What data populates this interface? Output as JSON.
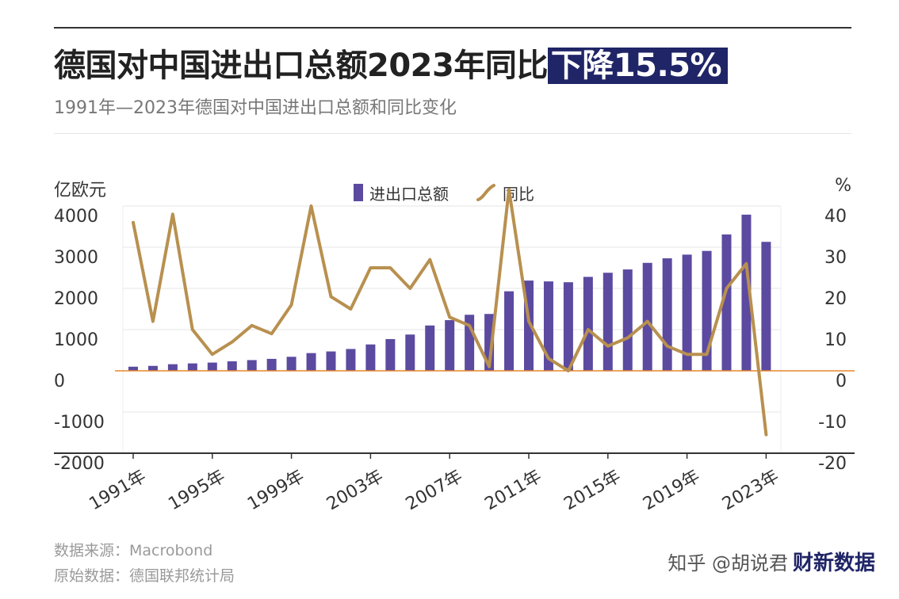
{
  "title": {
    "main": "德国对中国进出口总额2023年同比",
    "highlight": "下降15.5%"
  },
  "subtitle": "1991年—2023年德国对中国进出口总额和同比变化",
  "footer": {
    "source": "数据来源：Macrobond",
    "origin": "原始数据：德国联邦统计局",
    "brand_logo": "财新数据",
    "brand_text": "知乎 @胡说君"
  },
  "colors": {
    "bar": "#5b4aa0",
    "line": "#b8904f",
    "zero_line": "#e8862c",
    "title_highlight_bg": "#1f2566"
  },
  "chart_data": {
    "type": "bar+line",
    "left_unit": "亿欧元",
    "right_unit": "%",
    "x": [
      1991,
      1992,
      1993,
      1994,
      1995,
      1996,
      1997,
      1998,
      1999,
      2000,
      2001,
      2002,
      2003,
      2004,
      2005,
      2006,
      2007,
      2008,
      2009,
      2010,
      2011,
      2012,
      2013,
      2014,
      2015,
      2016,
      2017,
      2018,
      2019,
      2020,
      2021,
      2022,
      2023
    ],
    "x_tick_labels": [
      "1991年",
      "1995年",
      "1999年",
      "2003年",
      "2007年",
      "2011年",
      "2015年",
      "2019年",
      "2023年"
    ],
    "x_tick_years": [
      1991,
      1995,
      1999,
      2003,
      2007,
      2011,
      2015,
      2019,
      2023
    ],
    "y_left_ticks": [
      4000,
      3000,
      2000,
      1000,
      0,
      -1000,
      -2000
    ],
    "y_right_ticks": [
      40,
      30,
      20,
      10,
      0,
      -10,
      -20
    ],
    "ylim_left": [
      -2000,
      4000
    ],
    "ylim_right": [
      -20,
      40
    ],
    "grid": true,
    "legend": "top-center",
    "series": [
      {
        "name": "进出口总额",
        "type": "bar",
        "axis": "left",
        "values": [
          100,
          120,
          160,
          180,
          200,
          230,
          260,
          290,
          340,
          430,
          470,
          530,
          640,
          770,
          880,
          1100,
          1230,
          1360,
          1380,
          1930,
          2190,
          2170,
          2150,
          2280,
          2380,
          2460,
          2620,
          2730,
          2820,
          2910,
          3310,
          3790,
          3130
        ]
      },
      {
        "name": "同比",
        "type": "line",
        "axis": "right",
        "values": [
          36,
          12,
          38,
          10,
          4,
          7,
          11,
          9,
          16,
          40,
          18,
          15,
          25,
          25,
          20,
          27,
          13,
          11,
          1,
          44,
          12,
          3,
          0,
          10,
          6,
          8,
          12,
          6,
          4,
          4,
          20,
          26,
          -15.5
        ]
      }
    ]
  }
}
